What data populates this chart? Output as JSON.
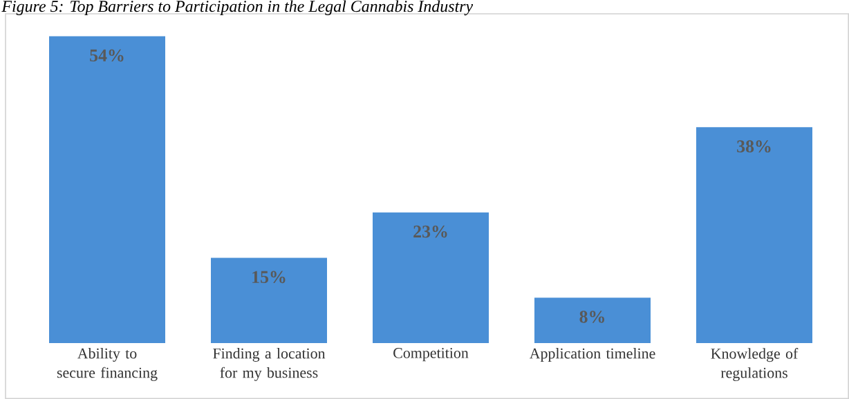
{
  "chart_data": {
    "type": "bar",
    "title": "Figure 5: Top Barriers to Participation in the Legal Cannabis Industry",
    "categories": [
      "Ability to secure financing",
      "Finding a location for my business",
      "Competition",
      "Application timeline",
      "Knowledge of regulations"
    ],
    "values": [
      54,
      15,
      23,
      8,
      38
    ],
    "value_labels": [
      "54%",
      "15%",
      "23%",
      "8%",
      "38%"
    ],
    "color": "#4a8fd6"
  }
}
